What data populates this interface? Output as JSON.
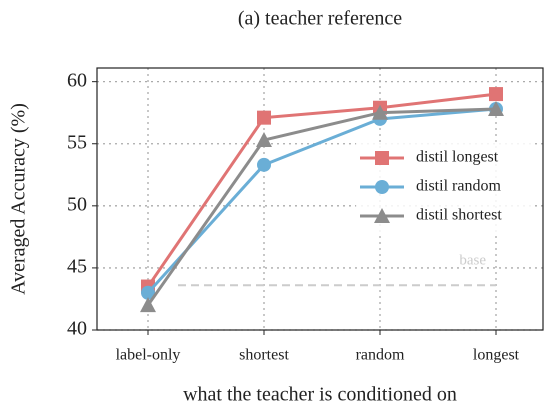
{
  "chart_data": {
    "type": "line",
    "title": "(a) teacher reference",
    "x_label": "what the teacher is conditioned on",
    "y_label": "Averaged Accuracy (%)",
    "categories": [
      "label-only",
      "shortest",
      "random",
      "longest"
    ],
    "series": [
      {
        "name": "distil longest",
        "color": "#e07474",
        "marker": "square",
        "values": [
          43.5,
          57.1,
          57.9,
          59.0
        ]
      },
      {
        "name": "distil random",
        "color": "#6aaed6",
        "marker": "circle",
        "values": [
          43.0,
          53.3,
          57.0,
          57.8
        ]
      },
      {
        "name": "distil shortest",
        "color": "#8c8c8c",
        "marker": "triangle",
        "values": [
          42.0,
          55.3,
          57.5,
          57.8
        ]
      }
    ],
    "reference_lines": [
      {
        "label": "base",
        "value": 43.6,
        "color": "#cccccc"
      }
    ],
    "ylim": [
      40,
      61.1
    ],
    "yticks": [
      40,
      45,
      50,
      55,
      60
    ],
    "grid": true,
    "legend": "right"
  }
}
